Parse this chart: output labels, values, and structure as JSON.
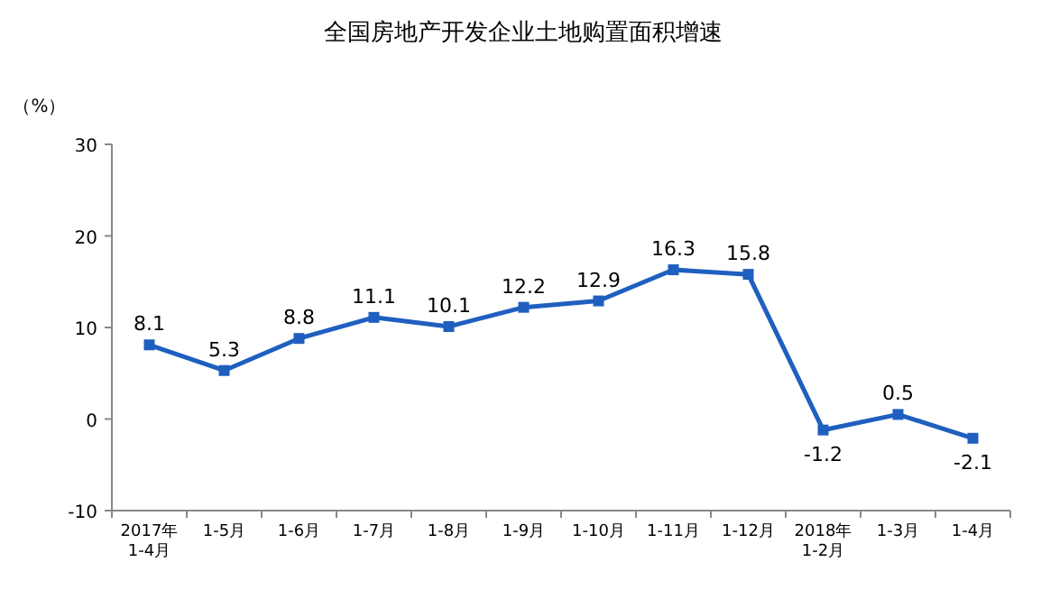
{
  "chart_data": {
    "type": "line",
    "title": "全国房地产开发企业土地购置面积增速",
    "ylabel": "（%）",
    "categories": [
      "2017年\n1-4月",
      "1-5月",
      "1-6月",
      "1-7月",
      "1-8月",
      "1-9月",
      "1-10月",
      "1-11月",
      "1-12月",
      "2018年\n1-2月",
      "1-3月",
      "1-4月"
    ],
    "series": [
      {
        "color": "#1f5fbf",
        "values": [
          8.1,
          5.3,
          8.8,
          11.1,
          10.1,
          12.2,
          12.9,
          16.3,
          15.8,
          -1.2,
          0.5,
          -2.1
        ]
      }
    ],
    "ylim": [
      -10,
      30
    ],
    "yticks": [
      -10,
      0,
      10,
      20,
      30
    ],
    "marker": "square",
    "data_labels": true,
    "grid": false
  }
}
